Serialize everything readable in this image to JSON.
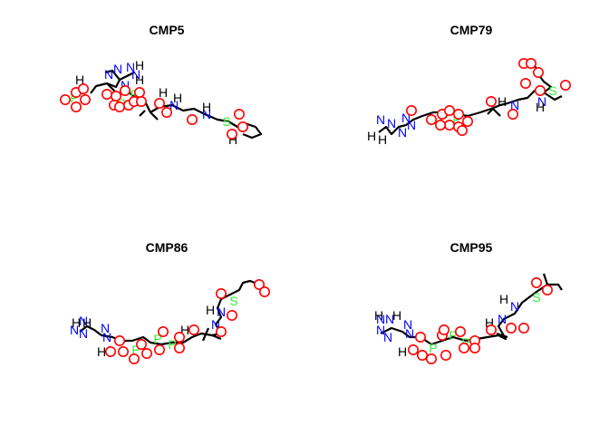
{
  "panels": [
    {
      "title": "CMP5"
    },
    {
      "title": "CMP79"
    },
    {
      "title": "CMP86"
    },
    {
      "title": "CMP95"
    }
  ],
  "colors": {
    "O": "#ff0000",
    "N": "#0000ff",
    "S": "#33ee33",
    "P": "#33ee33",
    "C": "#000000",
    "H": "#000000",
    "bond": "#000000"
  }
}
